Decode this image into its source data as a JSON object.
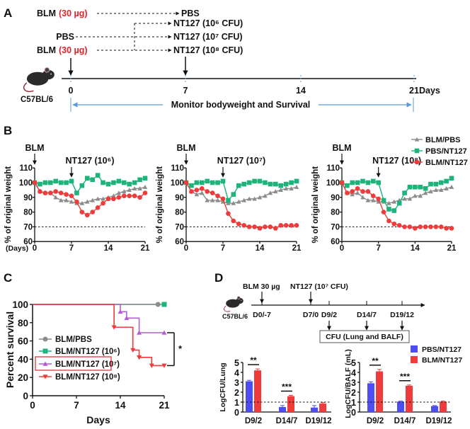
{
  "panel_labels": {
    "a": "A",
    "b": "B",
    "c": "C",
    "d": "D"
  },
  "colors": {
    "dose_red": "#e0242a",
    "timeline_blue": "#5b9bd5",
    "gray": "#8c8c8c",
    "green": "#1db37a",
    "red": "#ee3b3b",
    "purple": "#b25fd6",
    "blue": "#4d4df2"
  },
  "panel_a": {
    "blm": "BLM",
    "dose": "(30 µg)",
    "pbs_start": "PBS",
    "pbs_end": "PBS",
    "nt127": [
      "NT127 (10⁶ CFU)",
      "NT127 (10⁷ CFU)",
      "NT127 (10⁸ CFU)"
    ],
    "strain": "C57BL/6",
    "ticks": [
      "0",
      "7",
      "14",
      "21"
    ],
    "days": "Days",
    "monitor": "Monitor bodyweight and Survival",
    "mouse_icon": "mouse-icon"
  },
  "panel_b": {
    "blm_label": "BLM",
    "days_label": "(Days)",
    "legend": [
      "BLM/PBS",
      "PBS/NT127",
      "BLM/NT127"
    ]
  },
  "panel_d": {
    "blm_label": "BLM 30 µg",
    "nt_label": "NT127 (10⁷ CFU)",
    "strain": "C57BL/6",
    "timepoints": [
      "D0/-7",
      "D7/0",
      "D9/2",
      "D14/7",
      "D19/12"
    ],
    "box": "CFU (Lung and BALF)",
    "legend": [
      "PBS/NT127",
      "BLM/NT127"
    ]
  },
  "chart_data": [
    {
      "type": "line",
      "title": "NT127 (10⁶)",
      "ylabel": "% of original weight",
      "x": [
        0,
        1,
        2,
        3,
        4,
        5,
        6,
        7,
        8,
        9,
        10,
        11,
        12,
        13,
        14,
        15,
        16,
        17,
        18,
        19,
        20,
        21
      ],
      "xticks": [
        "0",
        "7",
        "14",
        "21"
      ],
      "yticks": [
        "60",
        "70",
        "80",
        "90",
        "100",
        "110"
      ],
      "ylim": [
        60,
        110
      ],
      "reference_line": 70,
      "series": [
        {
          "name": "BLM/PBS",
          "values": [
            100,
            94,
            93,
            93,
            90,
            88,
            88,
            87,
            86,
            86,
            87,
            88,
            89,
            89,
            90,
            91,
            93,
            94,
            95,
            96,
            96,
            97
          ]
        },
        {
          "name": "PBS/NT127",
          "values": [
            100,
            99,
            100,
            100,
            101,
            100,
            100,
            101,
            93,
            98,
            103,
            102,
            105,
            100,
            99,
            100,
            101,
            100,
            99,
            100,
            102,
            103
          ]
        },
        {
          "name": "BLM/NT127",
          "values": [
            100,
            94,
            93,
            93,
            94,
            93,
            92,
            91,
            87,
            80,
            78,
            80,
            83,
            86,
            89,
            89,
            90,
            91,
            91,
            91,
            90,
            93
          ]
        }
      ]
    },
    {
      "type": "line",
      "title": "NT127 (10⁷)",
      "ylabel": "% of original weight",
      "x": [
        0,
        1,
        2,
        3,
        4,
        5,
        6,
        7,
        8,
        9,
        10,
        11,
        12,
        13,
        14,
        15,
        16,
        17,
        18,
        19,
        20,
        21
      ],
      "xticks": [
        "0",
        "7",
        "14",
        "21"
      ],
      "yticks": [
        "60",
        "70",
        "80",
        "90",
        "100",
        "110"
      ],
      "ylim": [
        60,
        110
      ],
      "reference_line": 70,
      "series": [
        {
          "name": "BLM/PBS",
          "values": [
            100,
            94,
            92,
            93,
            88,
            88,
            88,
            87,
            86,
            86,
            87,
            88,
            89,
            89,
            90,
            91,
            93,
            94,
            95,
            96,
            96,
            97
          ]
        },
        {
          "name": "PBS/NT127",
          "values": [
            100,
            98,
            100,
            100,
            101,
            100,
            100,
            101,
            88,
            92,
            98,
            99,
            100,
            101,
            101,
            100,
            99,
            99,
            98,
            99,
            100,
            101
          ]
        },
        {
          "name": "BLM/NT127",
          "values": [
            100,
            94,
            95,
            96,
            94,
            93,
            91,
            89,
            79,
            74,
            72,
            71,
            70,
            70,
            69,
            70,
            70,
            69,
            71,
            71,
            71,
            71
          ]
        }
      ]
    },
    {
      "type": "line",
      "title": "NT127 (10⁸)",
      "ylabel": "% of original weight",
      "x": [
        0,
        1,
        2,
        3,
        4,
        5,
        6,
        7,
        8,
        9,
        10,
        11,
        12,
        13,
        14,
        15,
        16,
        17,
        18,
        19,
        20,
        21
      ],
      "xticks": [
        "0",
        "7",
        "14",
        "21"
      ],
      "yticks": [
        "60",
        "70",
        "80",
        "90",
        "100",
        "110"
      ],
      "ylim": [
        60,
        110
      ],
      "reference_line": 70,
      "series": [
        {
          "name": "BLM/PBS",
          "values": [
            100,
            93,
            92,
            93,
            90,
            88,
            88,
            87,
            87,
            86,
            87,
            88,
            89,
            89,
            91,
            91,
            93,
            94,
            95,
            95,
            96,
            97
          ]
        },
        {
          "name": "PBS/NT127",
          "values": [
            100,
            98,
            100,
            100,
            101,
            100,
            101,
            100,
            88,
            82,
            81,
            86,
            93,
            97,
            97,
            97,
            96,
            99,
            99,
            100,
            101,
            103
          ]
        },
        {
          "name": "BLM/NT127",
          "values": [
            100,
            93,
            94,
            96,
            94,
            94,
            91,
            89,
            80,
            74,
            72,
            71,
            70,
            70,
            69,
            70,
            70,
            70,
            70,
            70,
            69,
            69
          ]
        }
      ]
    },
    {
      "type": "line",
      "subtype": "kaplan-meier",
      "xlabel": "Days",
      "ylabel": "Percent survival",
      "xticks": [
        "0",
        "7",
        "14",
        "21"
      ],
      "yticks": [
        "0",
        "20",
        "40",
        "60",
        "80",
        "100"
      ],
      "xlim": [
        0,
        21
      ],
      "ylim": [
        0,
        100
      ],
      "legend_position": "left",
      "highlighted": "BLM/NT127 (10⁷)",
      "significance": "*",
      "series": [
        {
          "name": "BLM/PBS",
          "points": [
            [
              0,
              100
            ],
            [
              20,
              100
            ]
          ]
        },
        {
          "name": "BLM/NT127 (10⁶)",
          "points": [
            [
              0,
              100
            ],
            [
              21,
              100
            ]
          ]
        },
        {
          "name": "BLM/NT127 (10⁷)",
          "points": [
            [
              0,
              100
            ],
            [
              14,
              92
            ],
            [
              15,
              85
            ],
            [
              17,
              69
            ],
            [
              21,
              69
            ]
          ]
        },
        {
          "name": "BLM/NT127 (10⁸)",
          "points": [
            [
              0,
              100
            ],
            [
              13,
              75
            ],
            [
              16,
              50
            ],
            [
              17,
              42
            ],
            [
              19,
              33
            ],
            [
              21,
              33
            ]
          ]
        }
      ]
    },
    {
      "type": "bar",
      "ylabel": "LogCFU/Lung",
      "categories": [
        "D9/2",
        "D14/7",
        "D19/12"
      ],
      "yticks": [
        "0",
        "1",
        "2",
        "3",
        "4",
        "5"
      ],
      "ylim": [
        0,
        5
      ],
      "reference_line": 1,
      "significance": [
        "**",
        "***",
        ""
      ],
      "series": [
        {
          "name": "PBS/NT127",
          "values": [
            3.1,
            0.5,
            0.45
          ],
          "errors": [
            0.1,
            0.15,
            0.2
          ]
        },
        {
          "name": "BLM/NT127",
          "values": [
            4.2,
            1.6,
            0.85
          ],
          "errors": [
            0.15,
            0.08,
            0.1
          ]
        }
      ]
    },
    {
      "type": "bar",
      "ylabel": "LogCFU/BALF (mL)",
      "categories": [
        "D9/2",
        "D14/7",
        "D19/12"
      ],
      "yticks": [
        "0",
        "1",
        "2",
        "3",
        "4",
        "5"
      ],
      "ylim": [
        0,
        5
      ],
      "reference_line": 1,
      "significance": [
        "**",
        "***",
        ""
      ],
      "legend_position": "top-right",
      "series": [
        {
          "name": "PBS/NT127",
          "values": [
            2.9,
            1.05,
            0.6
          ],
          "errors": [
            0.15,
            0.05,
            0.05
          ]
        },
        {
          "name": "BLM/NT127",
          "values": [
            4.1,
            2.65,
            1.05
          ],
          "errors": [
            0.2,
            0.08,
            0.05
          ]
        }
      ]
    }
  ]
}
